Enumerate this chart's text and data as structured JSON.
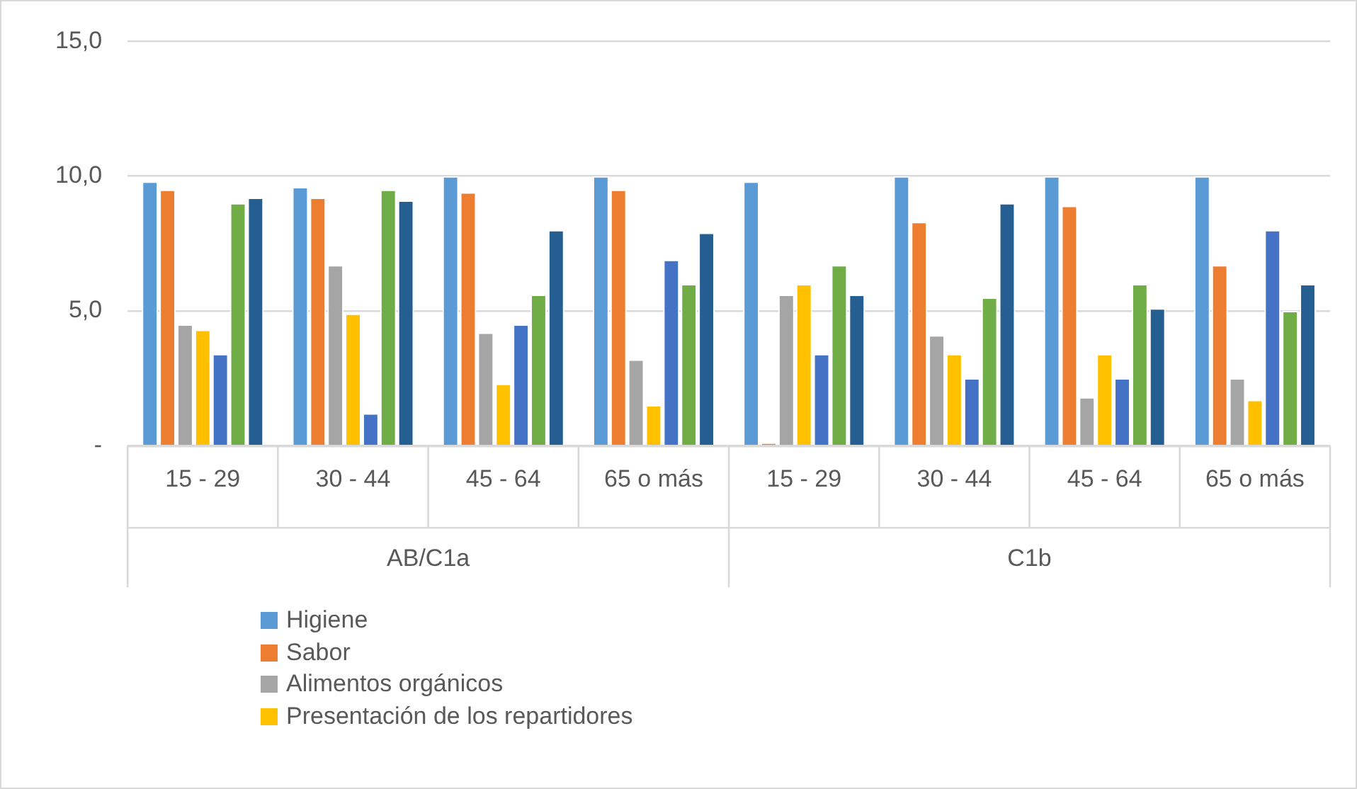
{
  "chart_data": {
    "type": "bar",
    "categories": [
      "15 - 29",
      "30 - 44",
      "45 - 64",
      "65 o más",
      "15 - 29",
      "30 - 44",
      "45 - 64",
      "65 o más"
    ],
    "annotations": [
      "AB/C1a",
      "C1b"
    ],
    "series": [
      {
        "name": "Higiene",
        "color": "#5b9bd5",
        "values": [
          9.8,
          9.6,
          10.0,
          10.0,
          9.8,
          10.0,
          10.0,
          10.0
        ]
      },
      {
        "name": "Sabor",
        "color": "#ed7d31",
        "values": [
          9.5,
          9.2,
          9.4,
          9.5,
          0.1,
          8.3,
          8.9,
          6.7
        ]
      },
      {
        "name": "Alimentos orgánicos",
        "color": "#a5a5a5",
        "values": [
          4.5,
          6.7,
          4.2,
          3.2,
          5.6,
          4.1,
          1.8,
          2.5
        ]
      },
      {
        "name": "Presentación de los repartidores",
        "color": "#ffc000",
        "values": [
          4.3,
          4.9,
          2.3,
          1.5,
          6.0,
          3.4,
          3.4,
          1.7
        ]
      },
      {
        "color": "#4472c4",
        "values": [
          3.4,
          1.2,
          4.5,
          6.9,
          3.4,
          2.5,
          2.5,
          8.0
        ]
      },
      {
        "color": "#70ad47",
        "values": [
          9.0,
          9.5,
          5.6,
          6.0,
          6.7,
          5.5,
          6.0,
          5.0
        ]
      },
      {
        "color": "#255e91",
        "values": [
          9.2,
          9.1,
          8.0,
          7.9,
          5.6,
          9.0,
          5.1,
          6.0
        ]
      }
    ],
    "ylim": [
      0,
      15
    ],
    "yticks": [
      {
        "value": 0,
        "label": "-"
      },
      {
        "value": 5,
        "label": "5,0"
      },
      {
        "value": 10,
        "label": "10,0"
      },
      {
        "value": 15,
        "label": "15,0"
      }
    ],
    "grid": "y",
    "legend": "bottom left"
  }
}
